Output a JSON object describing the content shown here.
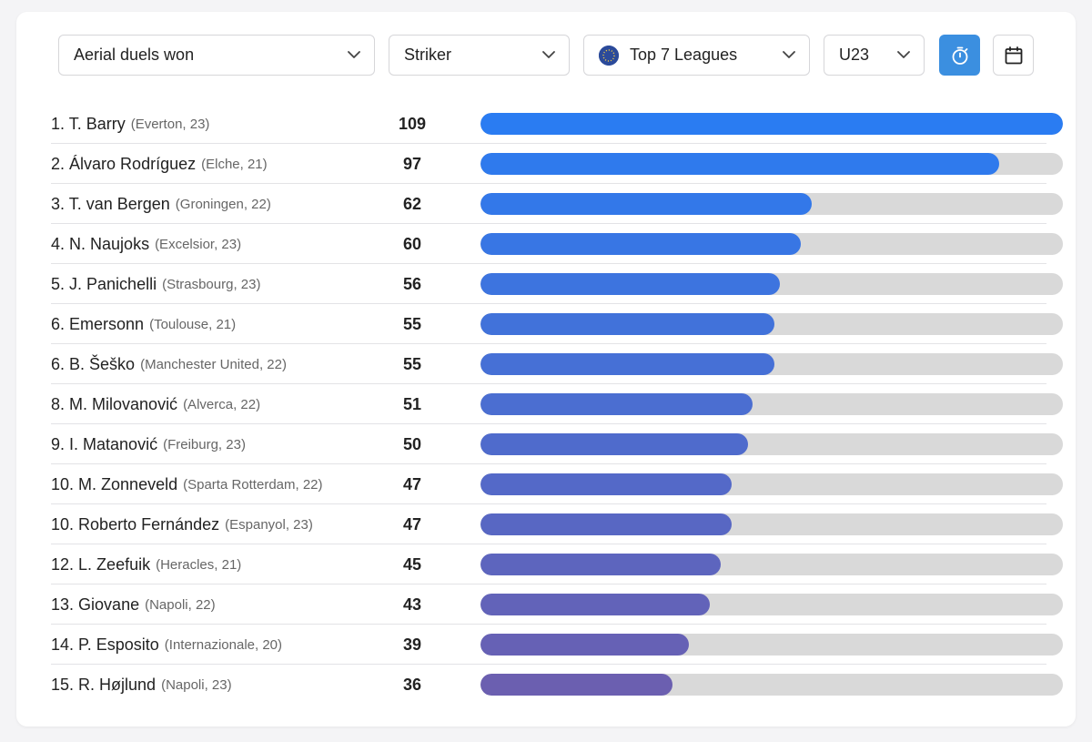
{
  "filters": {
    "metric": "Aerial duels won",
    "position": "Striker",
    "league": "Top 7 Leagues",
    "age": "U23"
  },
  "icons": {
    "league": "globe-icon",
    "timer": "stopwatch-icon",
    "calendar": "calendar-icon",
    "chevron": "chevron-down-icon"
  },
  "colors": {
    "timer_button": "#3b8fe0",
    "bar_track": "#d9d9d9",
    "bar_top": "#2a7cf2",
    "bar_bottom": "#6b5fb0"
  },
  "chart_data": {
    "type": "bar",
    "max": 109,
    "rows": [
      {
        "rank": "1.",
        "name": "T. Barry",
        "meta": "(Everton, 23)",
        "value": 109
      },
      {
        "rank": "2.",
        "name": "Álvaro Rodríguez",
        "meta": "(Elche, 21)",
        "value": 97
      },
      {
        "rank": "3.",
        "name": "T. van Bergen",
        "meta": "(Groningen, 22)",
        "value": 62
      },
      {
        "rank": "4.",
        "name": "N. Naujoks",
        "meta": "(Excelsior, 23)",
        "value": 60
      },
      {
        "rank": "5.",
        "name": "J. Panichelli",
        "meta": "(Strasbourg, 23)",
        "value": 56
      },
      {
        "rank": "6.",
        "name": "Emersonn",
        "meta": "(Toulouse, 21)",
        "value": 55
      },
      {
        "rank": "6.",
        "name": "B. Šeško",
        "meta": "(Manchester United, 22)",
        "value": 55
      },
      {
        "rank": "8.",
        "name": "M. Milovanović",
        "meta": "(Alverca, 22)",
        "value": 51
      },
      {
        "rank": "9.",
        "name": "I. Matanović",
        "meta": "(Freiburg, 23)",
        "value": 50
      },
      {
        "rank": "10.",
        "name": "M. Zonneveld",
        "meta": "(Sparta Rotterdam, 22)",
        "value": 47
      },
      {
        "rank": "10.",
        "name": "Roberto Fernández",
        "meta": "(Espanyol, 23)",
        "value": 47
      },
      {
        "rank": "12.",
        "name": "L. Zeefuik",
        "meta": "(Heracles, 21)",
        "value": 45
      },
      {
        "rank": "13.",
        "name": "Giovane",
        "meta": "(Napoli, 22)",
        "value": 43
      },
      {
        "rank": "14.",
        "name": "P. Esposito",
        "meta": "(Internazionale, 20)",
        "value": 39
      },
      {
        "rank": "15.",
        "name": "R. Højlund",
        "meta": "(Napoli, 23)",
        "value": 36
      }
    ]
  }
}
